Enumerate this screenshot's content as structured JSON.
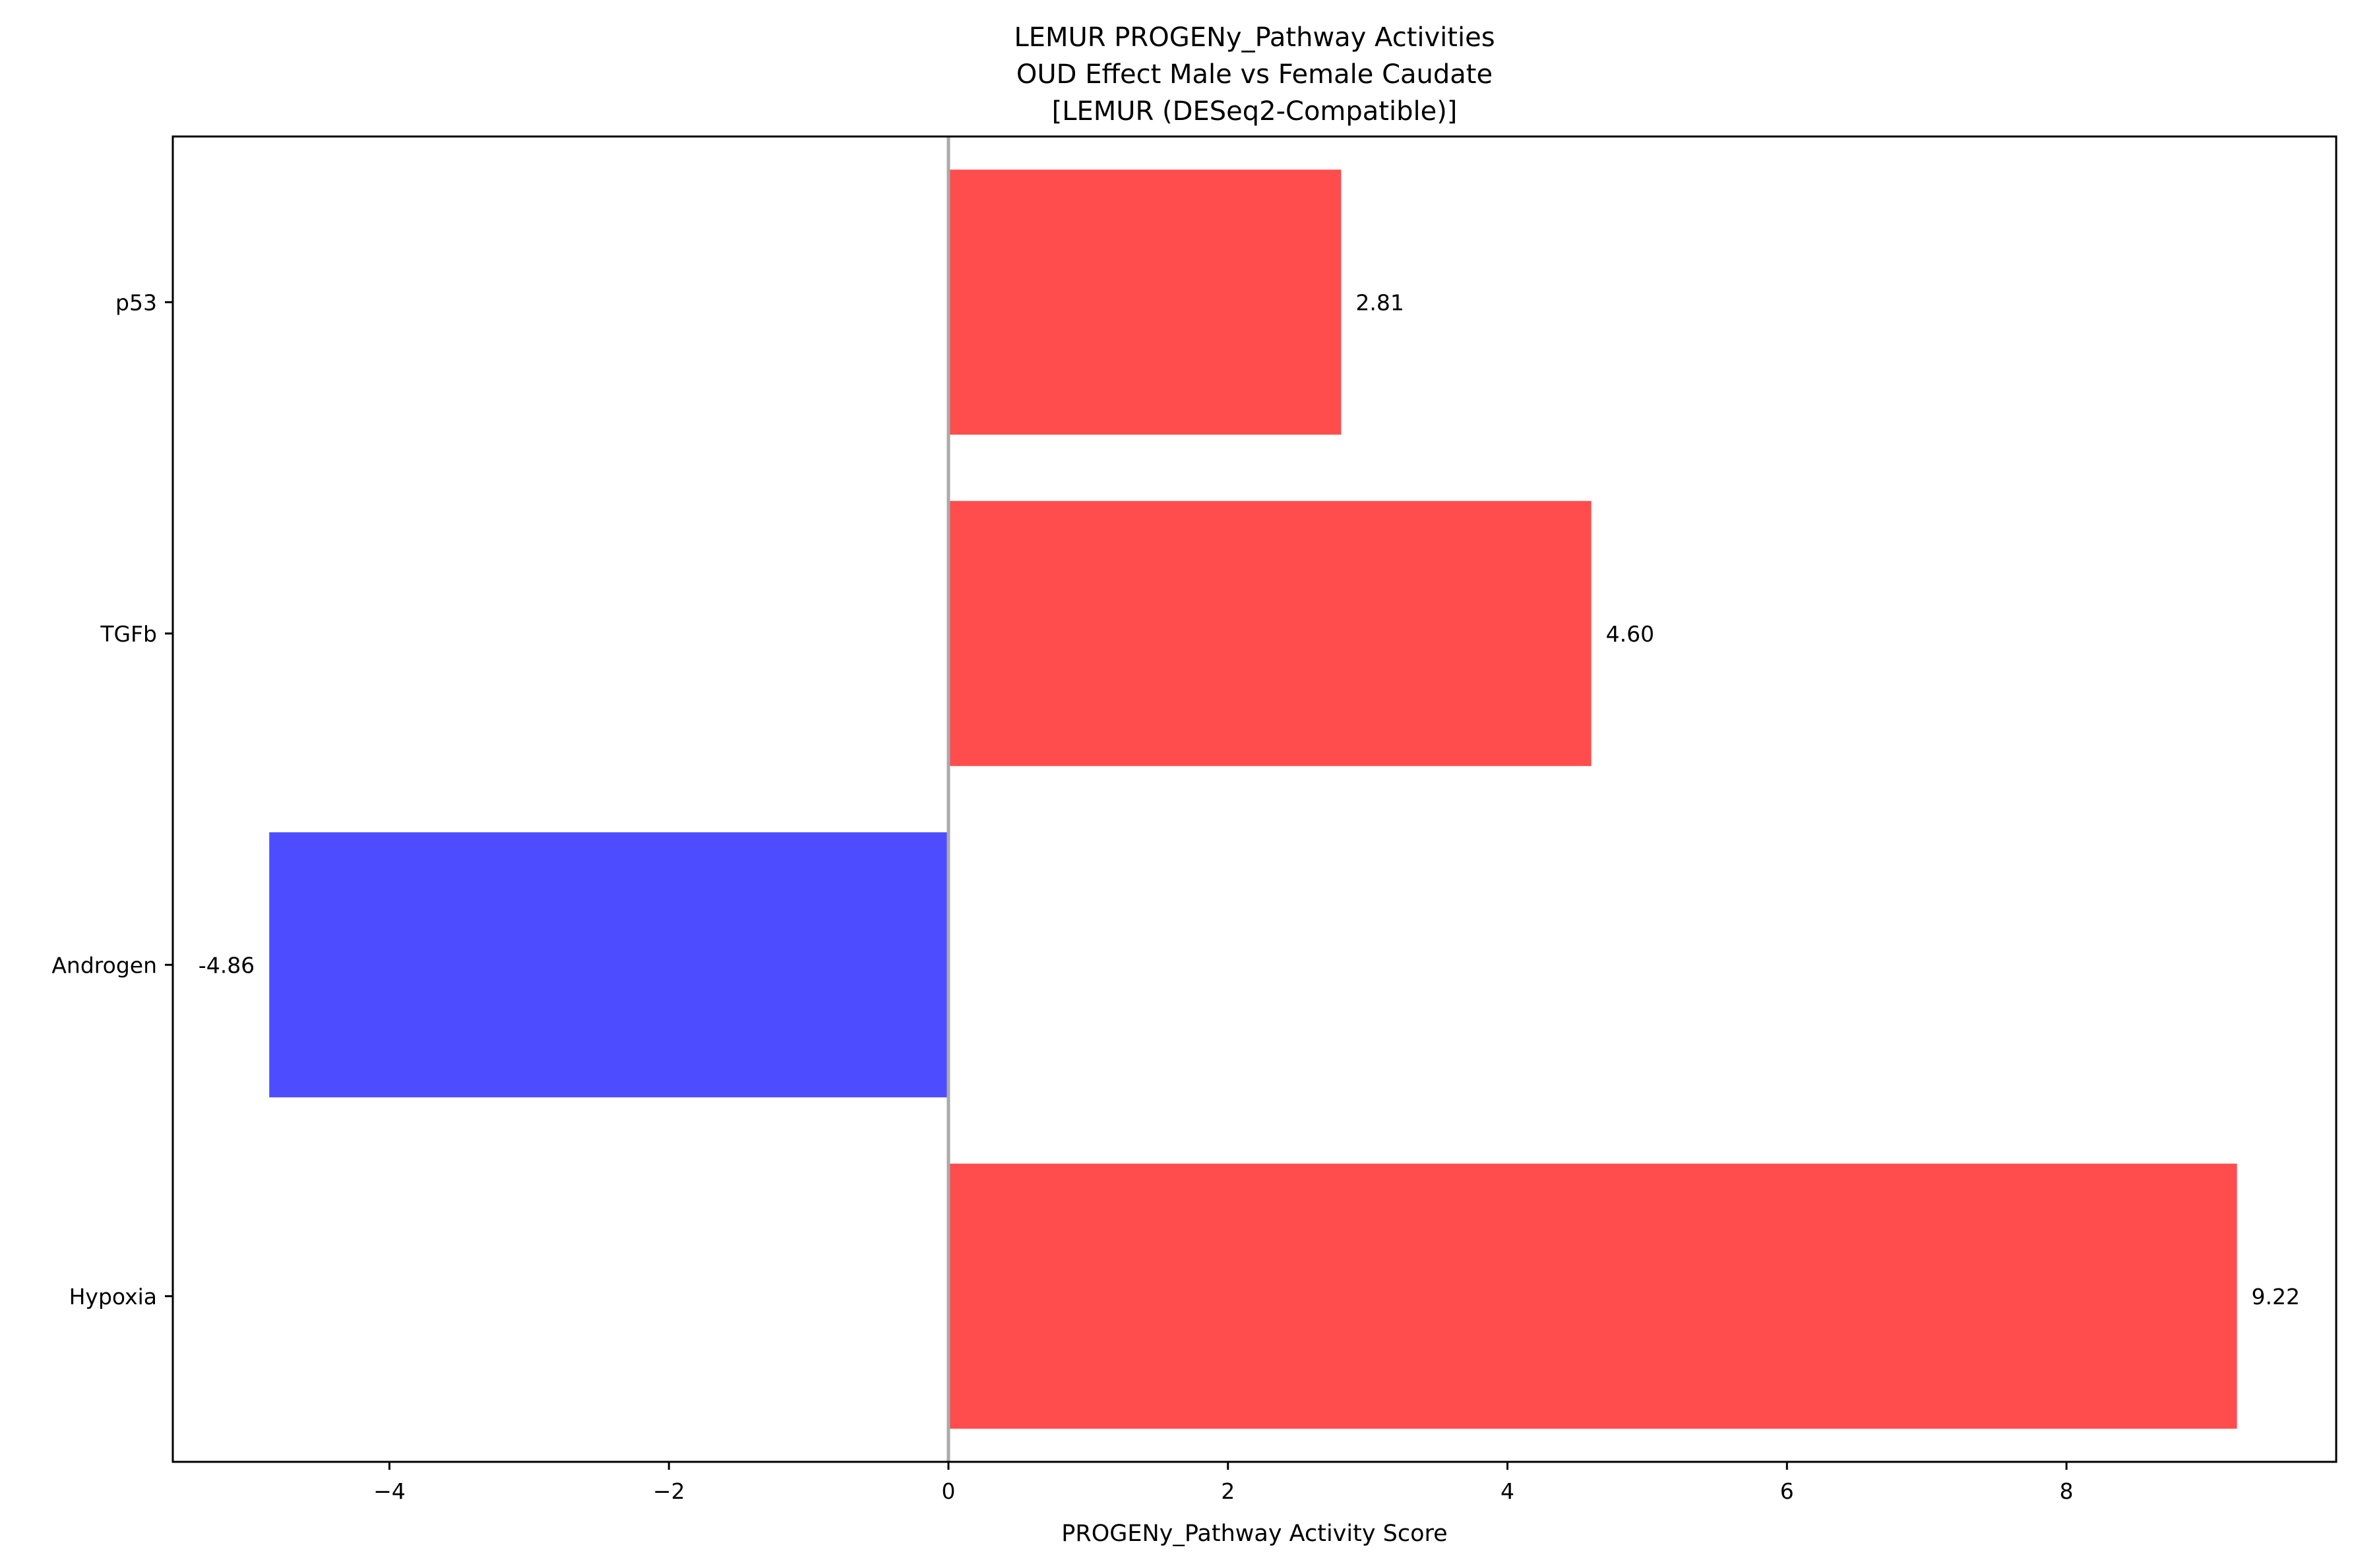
{
  "chart_data": {
    "type": "bar",
    "orientation": "horizontal",
    "title_lines": [
      "LEMUR PROGENy_Pathway Activities",
      "OUD Effect Male vs Female Caudate",
      "[LEMUR (DESeq2-Compatible)]"
    ],
    "xlabel": "PROGENy_Pathway Activity Score",
    "ylabel": "",
    "categories": [
      "p53",
      "TGFb",
      "Androgen",
      "Hypoxia"
    ],
    "values": [
      2.81,
      4.6,
      -4.86,
      9.22
    ],
    "value_labels": [
      "2.81",
      "4.60",
      "-4.86",
      "9.22"
    ],
    "xlim": [
      -5.55,
      9.93
    ],
    "xticks": [
      -4,
      -2,
      0,
      2,
      4,
      6,
      8
    ],
    "xtick_labels": [
      "−4",
      "−2",
      "0",
      "2",
      "4",
      "6",
      "8"
    ],
    "grid": false,
    "zero_line": true,
    "colors": {
      "positive": "#ff4d4d",
      "negative": "#4d4dff",
      "zero_line": "#aaaaaa",
      "axes": "#000000"
    }
  }
}
